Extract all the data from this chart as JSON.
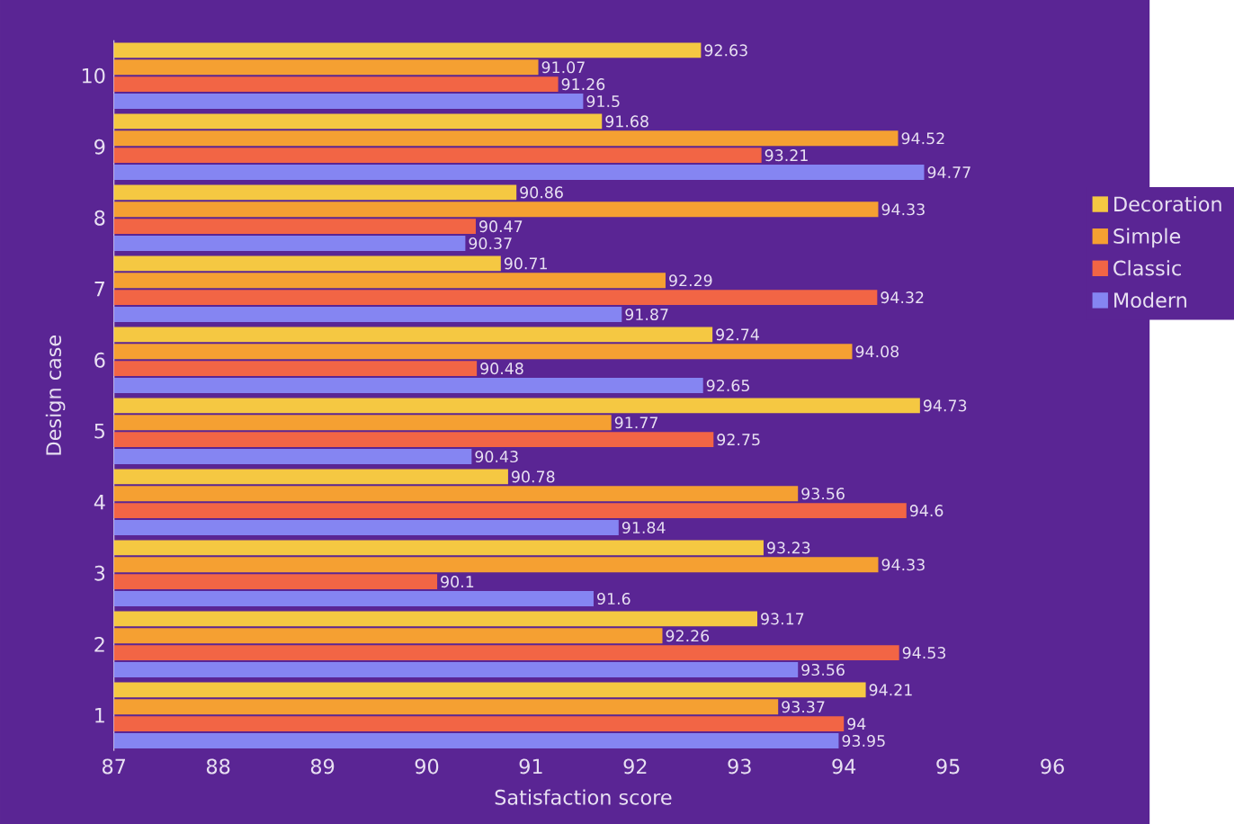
{
  "chart_data": {
    "type": "bar",
    "orientation": "horizontal",
    "xlabel": "Satisfaction score",
    "ylabel": "Design case",
    "categories": [
      "10",
      "9",
      "8",
      "7",
      "6",
      "5",
      "4",
      "3",
      "2",
      "1"
    ],
    "series": [
      {
        "name": "Decoration",
        "color": "#f5c842",
        "values": [
          92.63,
          91.68,
          90.86,
          90.71,
          92.74,
          94.73,
          90.78,
          93.23,
          93.17,
          94.21
        ]
      },
      {
        "name": "Simple",
        "color": "#f5a032",
        "values": [
          91.07,
          94.52,
          94.33,
          92.29,
          94.08,
          91.77,
          93.56,
          94.33,
          92.26,
          93.37
        ]
      },
      {
        "name": "Classic",
        "color": "#f26545",
        "values": [
          91.26,
          93.21,
          90.47,
          94.32,
          90.48,
          92.75,
          94.6,
          90.1,
          94.53,
          94
        ]
      },
      {
        "name": "Modern",
        "color": "#8585f2",
        "values": [
          91.5,
          94.77,
          90.37,
          91.87,
          92.65,
          90.43,
          91.84,
          91.6,
          93.56,
          93.95
        ]
      }
    ],
    "xlim": [
      87,
      96
    ],
    "xticks": [
      87,
      88,
      89,
      90,
      91,
      92,
      93,
      94,
      95,
      96
    ],
    "data_labels": true,
    "legend": "right",
    "grid": false
  }
}
